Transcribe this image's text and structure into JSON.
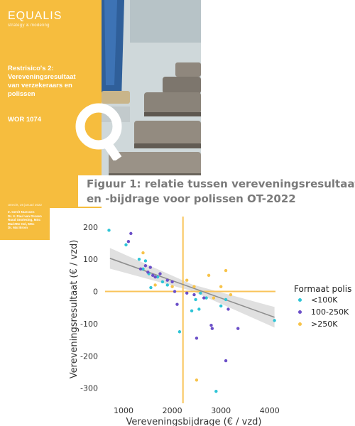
{
  "cover": {
    "logo": "EQUALIS",
    "logo_tagline": "strategy & modeling",
    "title_lines": [
      "Restrisico's 2:",
      "Vereveningsresultaat",
      "van verzekeraars en",
      "polissen"
    ],
    "report_code": "WOR 1074",
    "date": "Utrecht, 26 januari 2022",
    "authors": [
      "Ir. Gerrit Nuessen",
      "Dr. Ir. Paul van Drosen",
      "Ruud Snolesing, MSc",
      "Mariëtte Hol, MSc",
      "Dr. Mat Brom"
    ],
    "colors": {
      "panel": "#f6bd3e",
      "text": "#ffffff"
    }
  },
  "figure_title_lines": [
    "Figuur 1: relatie tussen vereveningsresultaat",
    "en -bijdrage voor polissen OT-2022"
  ],
  "chart_data": {
    "type": "scatter",
    "xlabel": "Vereveningsbijdrage (€ / vzd)",
    "ylabel": "Vereveningsresultaat (€ / vzd)",
    "xlim": [
      620,
      4120
    ],
    "ylim": [
      -325,
      215
    ],
    "xticks": [
      1000,
      2000,
      3000,
      4000
    ],
    "yticks": [
      200,
      100,
      0,
      -100,
      -200,
      -300
    ],
    "grid": false,
    "reference_lines": {
      "x": 2220,
      "y": 0,
      "color": "#f9c45a"
    },
    "trend_line": {
      "x": [
        720,
        4100
      ],
      "y": [
        103,
        -80
      ],
      "color": "#8e8e8e",
      "band_color": "#d5d5d5"
    },
    "legend": {
      "title": "Formaat polis",
      "placement": "right"
    },
    "series": [
      {
        "name": "<100K",
        "color": "#2ec4d6",
        "points": [
          [
            700,
            190
          ],
          [
            1050,
            145
          ],
          [
            1320,
            100
          ],
          [
            1400,
            70
          ],
          [
            1450,
            95
          ],
          [
            1520,
            55
          ],
          [
            1560,
            12
          ],
          [
            1700,
            45
          ],
          [
            1800,
            30
          ],
          [
            1900,
            20
          ],
          [
            2150,
            -125
          ],
          [
            2400,
            -60
          ],
          [
            2480,
            -25
          ],
          [
            2550,
            -55
          ],
          [
            2580,
            -5
          ],
          [
            2700,
            -20
          ],
          [
            2900,
            -310
          ],
          [
            3000,
            -45
          ],
          [
            3100,
            -25
          ],
          [
            4100,
            -90
          ]
        ]
      },
      {
        "name": "100-250K",
        "color": "#6b4fc8",
        "points": [
          [
            1100,
            155
          ],
          [
            1150,
            180
          ],
          [
            1350,
            70
          ],
          [
            1450,
            80
          ],
          [
            1500,
            60
          ],
          [
            1550,
            75
          ],
          [
            1600,
            50
          ],
          [
            1650,
            45
          ],
          [
            1750,
            55
          ],
          [
            1900,
            35
          ],
          [
            2000,
            30
          ],
          [
            2050,
            0
          ],
          [
            2100,
            -40
          ],
          [
            2300,
            -5
          ],
          [
            2450,
            -10
          ],
          [
            2500,
            -145
          ],
          [
            2650,
            -20
          ],
          [
            2800,
            -105
          ],
          [
            2820,
            -115
          ],
          [
            3100,
            -215
          ],
          [
            3150,
            -55
          ],
          [
            3350,
            -115
          ]
        ]
      },
      {
        "name": ">250K",
        "color": "#f7c34a",
        "points": [
          [
            1400,
            120
          ],
          [
            1650,
            20
          ],
          [
            2000,
            15
          ],
          [
            2300,
            35
          ],
          [
            2450,
            15
          ],
          [
            2500,
            -275
          ],
          [
            2750,
            50
          ],
          [
            2850,
            -20
          ],
          [
            3000,
            15
          ],
          [
            3100,
            65
          ],
          [
            3200,
            -10
          ]
        ]
      }
    ]
  }
}
